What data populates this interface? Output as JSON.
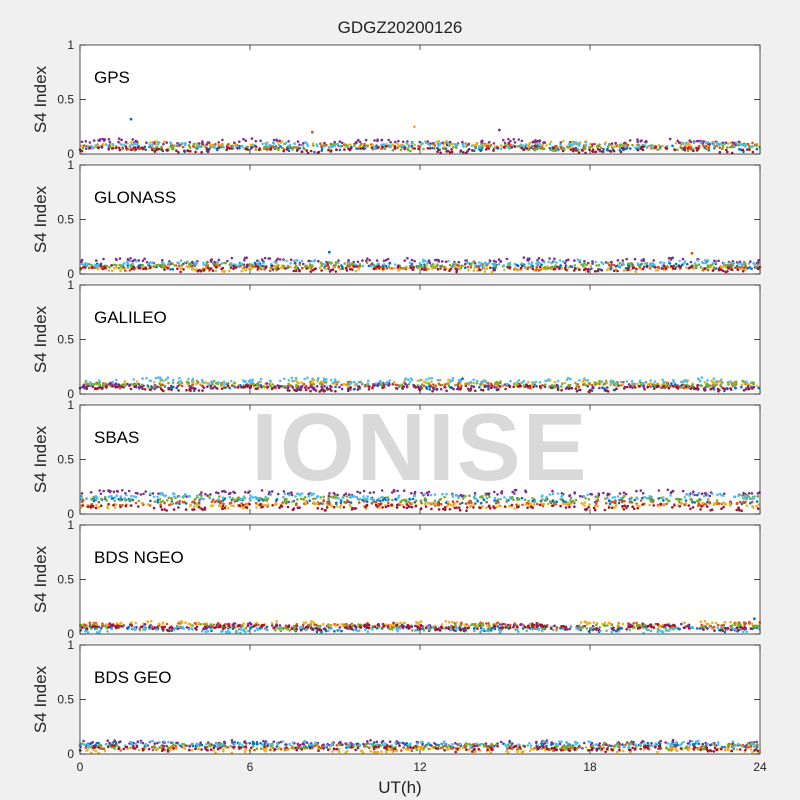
{
  "title": "GDGZ20200126",
  "xlabel": "UT(h)",
  "watermark": "IONISE",
  "colors": [
    "#0072bd",
    "#d95319",
    "#edb120",
    "#7e2f8e",
    "#77ac30",
    "#4dbeee",
    "#a2142f"
  ],
  "chart_data": [
    {
      "type": "scatter",
      "panel_label": "GPS",
      "ylabel": "S4 Index",
      "xlim": [
        0,
        24
      ],
      "ylim": [
        0,
        1
      ],
      "xticks": [
        0,
        6,
        12,
        18,
        24
      ],
      "yticks": [
        0,
        0.5,
        1
      ],
      "ytick_labels": [
        "0",
        "0.5",
        "1"
      ],
      "xtick_labels": [],
      "series_levels": [
        0.05,
        0.07,
        0.09,
        0.11,
        0.06,
        0.08,
        0.04
      ],
      "outliers": [
        {
          "x": 1.8,
          "y": 0.32
        },
        {
          "x": 8.2,
          "y": 0.2
        },
        {
          "x": 11.8,
          "y": 0.25
        },
        {
          "x": 14.8,
          "y": 0.22
        }
      ]
    },
    {
      "type": "scatter",
      "panel_label": "GLONASS",
      "ylabel": "S4 Index",
      "xlim": [
        0,
        24
      ],
      "ylim": [
        0,
        1
      ],
      "xticks": [
        0,
        6,
        12,
        18,
        24
      ],
      "yticks": [
        0,
        0.5,
        1
      ],
      "ytick_labels": [
        "0",
        "0.5",
        "1"
      ],
      "xtick_labels": [],
      "series_levels": [
        0.07,
        0.06,
        0.05,
        0.12,
        0.08,
        0.1,
        0.05
      ],
      "outliers": [
        {
          "x": 8.8,
          "y": 0.2
        },
        {
          "x": 21.6,
          "y": 0.19
        }
      ]
    },
    {
      "type": "scatter",
      "panel_label": "GALILEO",
      "ylabel": "S4 Index",
      "xlim": [
        0,
        24
      ],
      "ylim": [
        0,
        1
      ],
      "xticks": [
        0,
        6,
        12,
        18,
        24
      ],
      "yticks": [
        0,
        0.5,
        1
      ],
      "ytick_labels": [
        "0",
        "0.5",
        "1"
      ],
      "xtick_labels": [],
      "series_levels": [
        0.06,
        0.08,
        0.1,
        0.07,
        0.09,
        0.12,
        0.05
      ],
      "outliers": [
        {
          "x": 13.5,
          "y": 0.14
        }
      ]
    },
    {
      "type": "scatter",
      "panel_label": "SBAS",
      "ylabel": "S4 Index",
      "xlim": [
        0,
        24
      ],
      "ylim": [
        0,
        1
      ],
      "xticks": [
        0,
        6,
        12,
        18,
        24
      ],
      "yticks": [
        0,
        0.5,
        1
      ],
      "ytick_labels": [
        "0",
        "0.5",
        "1"
      ],
      "xtick_labels": [],
      "series_levels": [
        0.12,
        0.1,
        0.08,
        0.19,
        0.14,
        0.16,
        0.06
      ],
      "outliers": []
    },
    {
      "type": "scatter",
      "panel_label": "BDS NGEO",
      "ylabel": "S4 Index",
      "xlim": [
        0,
        24
      ],
      "ylim": [
        0,
        1
      ],
      "xticks": [
        0,
        6,
        12,
        18,
        24
      ],
      "yticks": [
        0,
        0.5,
        1
      ],
      "ytick_labels": [
        "0",
        "0.5",
        "1"
      ],
      "xtick_labels": [],
      "series_levels": [
        0.05,
        0.08,
        0.09,
        0.07,
        0.06,
        0.04,
        0.06
      ],
      "outliers": [
        {
          "x": 23.8,
          "y": 0.14
        }
      ]
    },
    {
      "type": "scatter",
      "panel_label": "BDS GEO",
      "ylabel": "S4 Index",
      "xlim": [
        0,
        24
      ],
      "ylim": [
        0,
        1
      ],
      "xticks": [
        0,
        6,
        12,
        18,
        24
      ],
      "yticks": [
        0,
        0.5,
        1
      ],
      "ytick_labels": [
        "0",
        "0.5",
        "1"
      ],
      "xtick_labels": [
        "0",
        "6",
        "12",
        "18",
        "24"
      ],
      "series_levels": [
        0.08,
        0.06,
        0.04,
        0.1,
        0.07,
        0.09,
        0.05
      ],
      "outliers": []
    }
  ]
}
